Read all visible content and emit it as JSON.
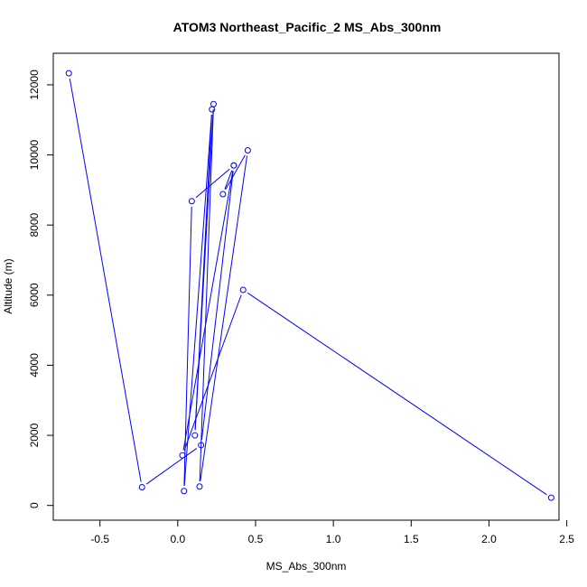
{
  "chart_data": {
    "type": "line",
    "title": "ATOM3 Northeast_Pacific_2 MS_Abs_300nm",
    "xlabel": "MS_Abs_300nm",
    "ylabel": "Altitude (m)",
    "xlim": [
      -0.8,
      2.45
    ],
    "ylim": [
      -420,
      12900
    ],
    "xticks": [
      -0.5,
      0.0,
      0.5,
      1.0,
      1.5,
      2.0,
      2.5
    ],
    "xtick_labels": [
      "-0.5",
      "0.0",
      "0.5",
      "1.0",
      "1.5",
      "2.0",
      "2.5"
    ],
    "yticks": [
      0,
      2000,
      4000,
      6000,
      8000,
      10000,
      12000
    ],
    "ytick_labels": [
      "0",
      "2000",
      "4000",
      "6000",
      "8000",
      "10000",
      "12000"
    ],
    "grid": false,
    "series": [
      {
        "color": "#0000ff",
        "marker": "open-circle",
        "points": [
          {
            "x": -0.7,
            "y": 12330
          },
          {
            "x": -0.23,
            "y": 520
          },
          {
            "x": 0.15,
            "y": 1720
          },
          {
            "x": 0.36,
            "y": 9700
          },
          {
            "x": 0.29,
            "y": 8880
          },
          {
            "x": 0.45,
            "y": 10130
          },
          {
            "x": 0.14,
            "y": 540
          },
          {
            "x": 0.23,
            "y": 11450
          },
          {
            "x": 0.11,
            "y": 2000
          },
          {
            "x": 0.22,
            "y": 11300
          },
          {
            "x": 0.04,
            "y": 410
          },
          {
            "x": 0.09,
            "y": 8680
          },
          {
            "x": 0.36,
            "y": 9700
          },
          {
            "x": 0.03,
            "y": 1430
          },
          {
            "x": 0.42,
            "y": 6150
          },
          {
            "x": 2.4,
            "y": 220
          }
        ]
      }
    ]
  }
}
